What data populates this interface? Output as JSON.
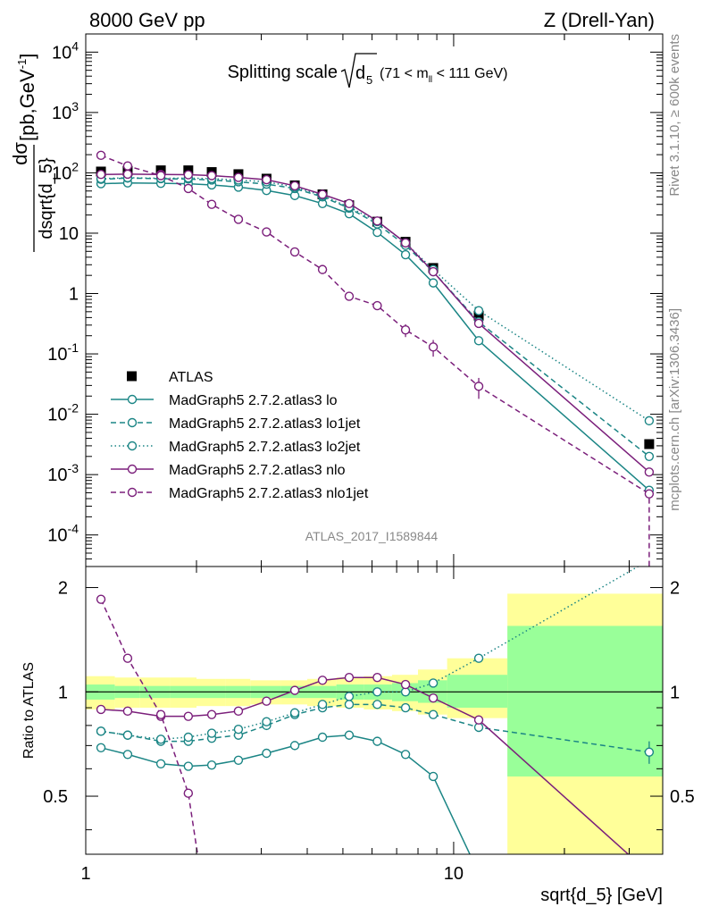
{
  "header": {
    "left": "8000 GeV pp",
    "right": "Z (Drell-Yan)"
  },
  "side_labels": {
    "rivet": "Rivet 3.1.10, ≥ 600k events",
    "mcplots": "mcplots.cern.ch [arXiv:1306.3436]"
  },
  "chart_data": [
    {
      "type": "line",
      "title": "Splitting scale √d₅ (71 < mₗₗ < 111 GeV)",
      "title_main": "Splitting scale",
      "title_sym": "d",
      "title_sub": "5",
      "title_range_a": "(71 < m",
      "title_range_sub": "ll",
      "title_range_b": " < 111 GeV)",
      "analysis_label": "ATLAS_2017_I1589844",
      "ylabel": "dσ / dsqrt{d_5} [pb,GeV⁻¹]",
      "ylabel_num": "dσ",
      "ylabel_den": "dsqrt{d_5}",
      "ylabel_unit_a": "[pb,GeV",
      "ylabel_unit_sup": "-1",
      "ylabel_unit_b": "]",
      "xscale": "log",
      "yscale": "log",
      "xlim": [
        1,
        37
      ],
      "ylim": [
        3e-05,
        20000
      ],
      "y_ticks": [
        {
          "value": 0.0001,
          "mantissa": "10",
          "exp": "-4"
        },
        {
          "value": 0.001,
          "mantissa": "10",
          "exp": "-3"
        },
        {
          "value": 0.01,
          "mantissa": "10",
          "exp": "-2"
        },
        {
          "value": 0.1,
          "mantissa": "10",
          "exp": "-1"
        },
        {
          "value": 1,
          "label": "1"
        },
        {
          "value": 10,
          "label": "10"
        },
        {
          "value": 100,
          "mantissa": "10",
          "exp": "2"
        },
        {
          "value": 1000,
          "mantissa": "10",
          "exp": "3"
        },
        {
          "value": 10000,
          "mantissa": "10",
          "exp": "4"
        }
      ],
      "legend_position": "center-left",
      "data": {
        "name": "ATLAS",
        "x": [
          1.1,
          1.3,
          1.6,
          1.9,
          2.2,
          2.6,
          3.1,
          3.7,
          4.4,
          5.2,
          6.2,
          7.4,
          8.8,
          11.7,
          34.0
        ],
        "y": [
          105,
          108,
          110,
          110,
          103,
          95,
          80,
          62,
          44,
          29,
          15.5,
          7.2,
          2.65,
          0.43,
          0.0032
        ],
        "bin_edges": [
          1.0,
          1.2,
          1.4,
          1.7,
          2.0,
          2.4,
          2.8,
          3.4,
          4.0,
          4.8,
          5.7,
          6.8,
          8.0,
          9.6,
          14.0,
          37.0
        ]
      },
      "series": [
        {
          "name": "MadGraph5 2.7.2.atlas3 lo",
          "color": "#1b8585",
          "dash": "solid",
          "x": [
            1.1,
            1.3,
            1.6,
            1.9,
            2.2,
            2.6,
            3.1,
            3.7,
            4.4,
            5.2,
            6.2,
            7.4,
            8.8,
            11.7,
            34.0
          ],
          "y": [
            66,
            68,
            67,
            66,
            63,
            58,
            51,
            42,
            31,
            21,
            10.3,
            4.4,
            1.5,
            0.165,
            0.00055
          ]
        },
        {
          "name": "MadGraph5 2.7.2.atlas3 lo1jet",
          "color": "#1b8585",
          "dash": "dashed",
          "x": [
            1.1,
            1.3,
            1.6,
            1.9,
            2.2,
            2.6,
            3.1,
            3.7,
            4.4,
            5.2,
            6.2,
            7.4,
            8.8,
            11.7,
            34.0
          ],
          "y": [
            78,
            82,
            80,
            79,
            76,
            71,
            65,
            55,
            40,
            26,
            14.2,
            6.3,
            2.3,
            0.34,
            0.002
          ]
        },
        {
          "name": "MadGraph5 2.7.2.atlas3 lo2jet",
          "color": "#1b8585",
          "dash": "dotted",
          "x": [
            1.1,
            1.3,
            1.6,
            1.9,
            2.2,
            2.6,
            3.1,
            3.7,
            4.4,
            5.2,
            6.2,
            7.4,
            8.8,
            11.7,
            34.0
          ],
          "y": [
            80,
            83,
            81,
            82,
            80,
            76,
            71,
            58,
            42,
            27,
            15.6,
            6.9,
            2.5,
            0.52,
            0.0078
          ]
        },
        {
          "name": "MadGraph5 2.7.2.atlas3 nlo",
          "color": "#7b1f7b",
          "dash": "solid",
          "x": [
            1.1,
            1.3,
            1.6,
            1.9,
            2.2,
            2.6,
            3.1,
            3.7,
            4.4,
            5.2,
            6.2,
            7.4,
            8.8,
            11.7,
            34.0
          ],
          "y": [
            94,
            95,
            94,
            93,
            90,
            84,
            77,
            61,
            44,
            31,
            15.9,
            6.9,
            2.3,
            0.32,
            0.0011
          ]
        },
        {
          "name": "MadGraph5 2.7.2.atlas3 nlo1jet",
          "color": "#7b1f7b",
          "dash": "dashed",
          "x": [
            1.1,
            1.3,
            1.6,
            1.9,
            2.2,
            2.6,
            3.1,
            3.7,
            4.4,
            5.2,
            6.2,
            7.4,
            8.8,
            11.7,
            34.0
          ],
          "y": [
            195,
            130,
            90,
            55,
            30,
            17,
            10.5,
            4.9,
            2.5,
            0.9,
            0.63,
            0.25,
            0.13,
            0.029,
            0.00048
          ],
          "yerr": [
            0,
            0,
            0,
            0,
            0,
            0,
            0,
            0,
            0,
            0,
            0,
            0.06,
            0.04,
            0.011,
            0
          ]
        }
      ]
    },
    {
      "type": "line",
      "ylabel": "Ratio to ATLAS",
      "xlabel": "sqrt{d_5} [GeV]",
      "xscale": "log",
      "xlim": [
        1,
        37
      ],
      "ylim": [
        0.34,
        2.3
      ],
      "y_ticks": [
        0.5,
        1,
        2
      ],
      "x_ticks": [
        1,
        10
      ],
      "reference_line": 1,
      "bands": {
        "bin_edges": [
          1.0,
          1.2,
          1.4,
          1.7,
          2.0,
          2.4,
          2.8,
          3.4,
          4.0,
          4.8,
          5.7,
          6.8,
          8.0,
          9.6,
          14.0,
          37.0
        ],
        "stat_sys_low": [
          0.89,
          0.9,
          0.9,
          0.9,
          0.91,
          0.91,
          0.92,
          0.92,
          0.91,
          0.9,
          0.89,
          0.88,
          0.86,
          0.84,
          0.34
        ],
        "stat_sys_high": [
          1.11,
          1.1,
          1.1,
          1.1,
          1.09,
          1.09,
          1.08,
          1.08,
          1.09,
          1.1,
          1.11,
          1.12,
          1.16,
          1.25,
          1.92
        ],
        "stat_low": [
          0.95,
          0.96,
          0.96,
          0.96,
          0.96,
          0.96,
          0.96,
          0.96,
          0.96,
          0.95,
          0.95,
          0.94,
          0.93,
          0.9,
          0.57
        ],
        "stat_high": [
          1.05,
          1.04,
          1.04,
          1.04,
          1.04,
          1.04,
          1.04,
          1.04,
          1.04,
          1.05,
          1.05,
          1.06,
          1.08,
          1.12,
          1.55
        ],
        "stat_sys_color": "#ffff99",
        "stat_color": "#99ff99"
      },
      "series": [
        {
          "name": "lo",
          "color": "#1b8585",
          "dash": "solid",
          "x": [
            1.1,
            1.3,
            1.6,
            1.9,
            2.2,
            2.6,
            3.1,
            3.7,
            4.4,
            5.2,
            6.2,
            7.4,
            8.8,
            11.7
          ],
          "y": [
            0.69,
            0.66,
            0.62,
            0.61,
            0.615,
            0.635,
            0.665,
            0.7,
            0.74,
            0.75,
            0.72,
            0.66,
            0.57,
            0.3
          ]
        },
        {
          "name": "lo1jet",
          "color": "#1b8585",
          "dash": "dashed",
          "x": [
            1.1,
            1.3,
            1.6,
            1.9,
            2.2,
            2.6,
            3.1,
            3.7,
            4.4,
            5.2,
            6.2,
            7.4,
            8.8,
            11.7,
            34.0
          ],
          "y": [
            0.77,
            0.75,
            0.72,
            0.72,
            0.735,
            0.75,
            0.8,
            0.86,
            0.9,
            0.92,
            0.92,
            0.9,
            0.86,
            0.79,
            0.67
          ],
          "yerr": [
            0,
            0,
            0,
            0,
            0,
            0,
            0,
            0,
            0,
            0,
            0,
            0,
            0,
            0,
            0.05
          ]
        },
        {
          "name": "lo2jet",
          "color": "#1b8585",
          "dash": "dotted",
          "x": [
            1.1,
            1.3,
            1.6,
            1.9,
            2.2,
            2.6,
            3.1,
            3.7,
            4.4,
            5.2,
            6.2,
            7.4,
            8.8,
            11.7,
            34.0
          ],
          "y": [
            0.77,
            0.75,
            0.73,
            0.74,
            0.76,
            0.78,
            0.82,
            0.87,
            0.92,
            0.97,
            1.0,
            1.0,
            1.06,
            1.25,
            2.4
          ]
        },
        {
          "name": "nlo",
          "color": "#7b1f7b",
          "dash": "solid",
          "x": [
            1.1,
            1.3,
            1.6,
            1.9,
            2.2,
            2.6,
            3.1,
            3.7,
            4.4,
            5.2,
            6.2,
            7.4,
            8.8,
            11.7,
            34.0
          ],
          "y": [
            0.89,
            0.88,
            0.85,
            0.85,
            0.86,
            0.88,
            0.94,
            1.01,
            1.08,
            1.1,
            1.1,
            1.05,
            0.96,
            0.83,
            0.3
          ]
        },
        {
          "name": "nlo1jet",
          "color": "#7b1f7b",
          "dash": "dashed",
          "x": [
            1.1,
            1.3,
            1.6,
            1.9,
            2.05
          ],
          "y": [
            1.85,
            1.25,
            0.86,
            0.51,
            0.3
          ]
        }
      ]
    }
  ]
}
